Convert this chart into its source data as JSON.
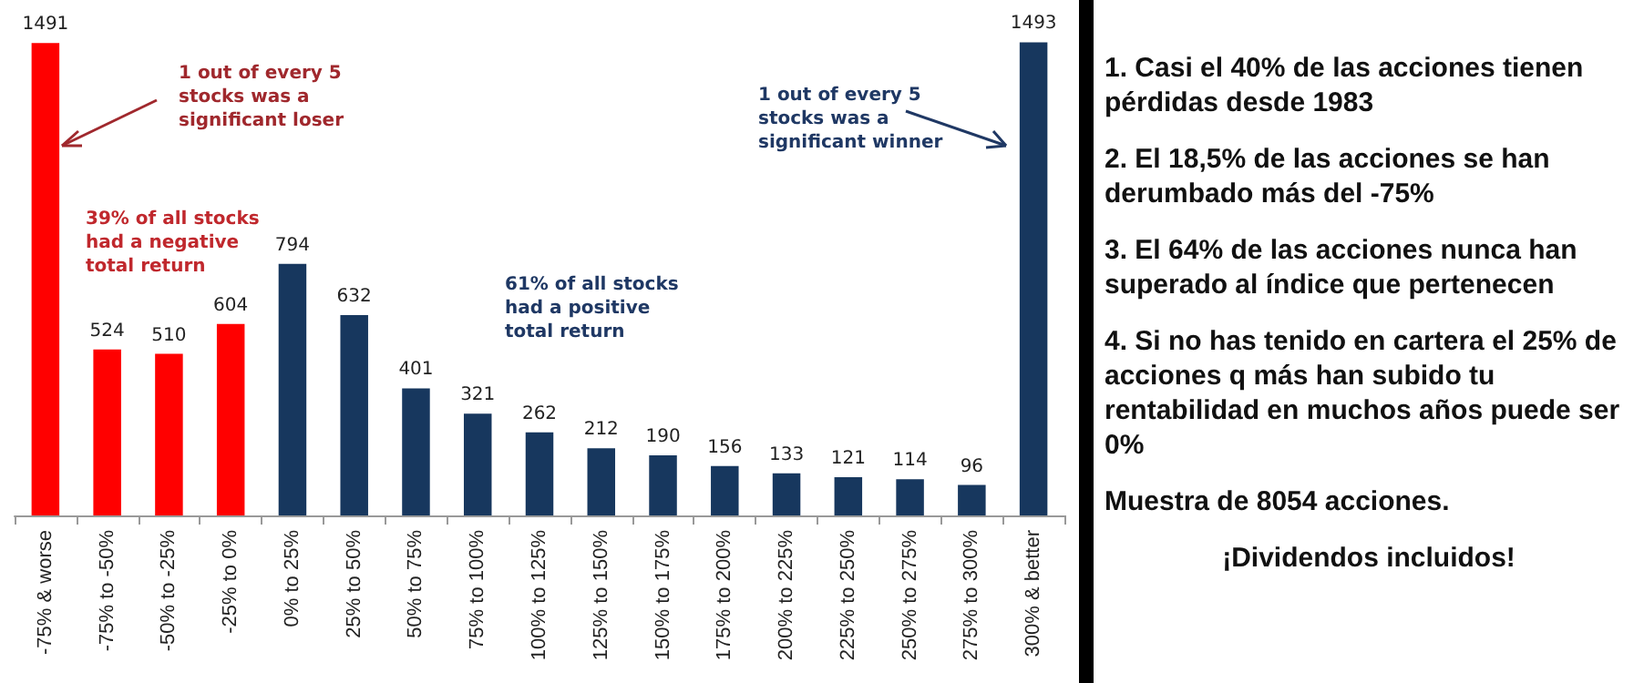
{
  "chart_data": {
    "type": "bar",
    "categories": [
      "-75% & worse",
      "-75% to -50%",
      "-50% to -25%",
      "-25% to 0%",
      "0% to 25%",
      "25% to 50%",
      "50% to 75%",
      "75% to 100%",
      "100% to 125%",
      "125% to 150%",
      "150% to 175%",
      "175% to 200%",
      "200% to 225%",
      "225% to 250%",
      "250% to 275%",
      "275% to 300%",
      "300% & better"
    ],
    "values": [
      1491,
      524,
      510,
      604,
      794,
      632,
      401,
      321,
      262,
      212,
      190,
      156,
      133,
      121,
      114,
      96,
      1493
    ],
    "colors": [
      "#ff0000",
      "#ff0000",
      "#ff0000",
      "#ff0000",
      "#17375e",
      "#17375e",
      "#17375e",
      "#17375e",
      "#17375e",
      "#17375e",
      "#17375e",
      "#17375e",
      "#17375e",
      "#17375e",
      "#17375e",
      "#17375e",
      "#17375e"
    ],
    "data_labels": true,
    "annotations": [
      "1 out of every 5\nstocks was a\nsignificant loser",
      "39% of all stocks\nhad a negative\ntotal return",
      "61% of all stocks\nhad a positive\ntotal return",
      "1 out of every 5\nstocks was a\nsignificant  winner",
      "1. Casi el 40% de las acciones tienen pérdidas desde 1983",
      "2. El 18,5% de las acciones se han derumbado más del -75%",
      "3. El 64% de las acciones nunca han superado al índice que pertenecen",
      "4. Si no has tenido en cartera el 25% de acciones q más han subido tu rentabilidad en muchos años puede ser 0%",
      "Muestra de 8054 acciones.",
      "¡Dividendos incluidos!"
    ]
  }
}
